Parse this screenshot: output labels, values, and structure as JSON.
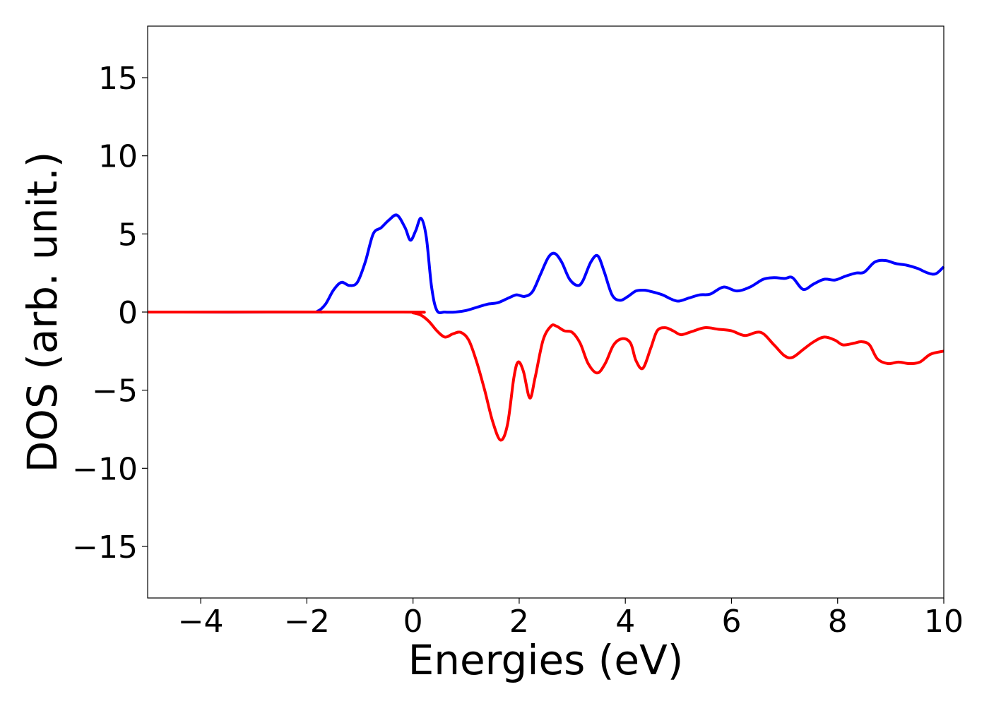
{
  "chart_data": {
    "type": "line",
    "title": "",
    "xlabel": "Energies (eV)",
    "ylabel": "DOS (arb. unit.)",
    "xlim": [
      -5,
      10
    ],
    "ylim": [
      -18.3,
      18.3
    ],
    "xticks": [
      -4,
      -2,
      0,
      2,
      4,
      6,
      8,
      10
    ],
    "yticks": [
      -15,
      -10,
      -5,
      0,
      5,
      10,
      15
    ],
    "xtick_labels": [
      "−4",
      "−2",
      "0",
      "2",
      "4",
      "6",
      "8",
      "10"
    ],
    "ytick_labels": [
      "−15",
      "−10",
      "−5",
      "0",
      "5",
      "10",
      "15"
    ],
    "grid": false,
    "series": [
      {
        "color": "#0000ff",
        "x": [
          -5,
          -2.0,
          -1.8,
          -1.65,
          -1.5,
          -1.35,
          -1.2,
          -1.05,
          -0.9,
          -0.75,
          -0.6,
          -0.45,
          -0.3,
          -0.15,
          -0.05,
          0.05,
          0.15,
          0.25,
          0.35,
          0.45,
          0.6,
          0.8,
          1.0,
          1.2,
          1.4,
          1.6,
          1.8,
          1.95,
          2.1,
          2.25,
          2.4,
          2.55,
          2.67,
          2.8,
          2.95,
          3.1,
          3.2,
          3.35,
          3.48,
          3.6,
          3.75,
          3.9,
          4.05,
          4.2,
          4.35,
          4.5,
          4.7,
          4.85,
          5.0,
          5.2,
          5.4,
          5.6,
          5.85,
          6.1,
          6.35,
          6.6,
          6.8,
          7.0,
          7.15,
          7.35,
          7.55,
          7.75,
          7.95,
          8.15,
          8.35,
          8.5,
          8.7,
          8.9,
          9.1,
          9.3,
          9.5,
          9.7,
          9.85,
          10
        ],
        "y": [
          0,
          0,
          0.05,
          0.5,
          1.4,
          1.9,
          1.7,
          1.9,
          3.2,
          5.0,
          5.4,
          5.9,
          6.2,
          5.4,
          4.6,
          5.2,
          6.0,
          4.8,
          1.6,
          0.1,
          0.0,
          0.0,
          0.1,
          0.3,
          0.5,
          0.6,
          0.9,
          1.1,
          1.0,
          1.3,
          2.4,
          3.5,
          3.75,
          3.2,
          2.1,
          1.7,
          2.0,
          3.2,
          3.6,
          2.6,
          1.1,
          0.75,
          1.0,
          1.35,
          1.4,
          1.3,
          1.1,
          0.85,
          0.7,
          0.9,
          1.1,
          1.15,
          1.6,
          1.35,
          1.6,
          2.1,
          2.2,
          2.15,
          2.2,
          1.45,
          1.8,
          2.1,
          2.05,
          2.3,
          2.5,
          2.55,
          3.2,
          3.3,
          3.1,
          3.0,
          2.8,
          2.5,
          2.45,
          2.9
        ]
      },
      {
        "color": "#ff0000",
        "x": [
          -5,
          -0.2,
          0.0,
          0.15,
          0.3,
          0.45,
          0.6,
          0.75,
          0.9,
          1.05,
          1.2,
          1.35,
          1.5,
          1.65,
          1.78,
          1.9,
          1.98,
          2.08,
          2.2,
          2.3,
          2.45,
          2.6,
          2.7,
          2.85,
          3.0,
          3.15,
          3.3,
          3.47,
          3.62,
          3.78,
          3.95,
          4.1,
          4.2,
          4.33,
          4.48,
          4.6,
          4.75,
          4.9,
          5.05,
          5.25,
          5.5,
          5.75,
          6.0,
          6.25,
          6.55,
          6.8,
          7.0,
          7.15,
          7.35,
          7.55,
          7.75,
          7.95,
          8.1,
          8.3,
          8.45,
          8.6,
          8.75,
          8.95,
          9.15,
          9.35,
          9.55,
          9.75,
          10
        ],
        "y": [
          0,
          0,
          -0.05,
          -0.2,
          -0.6,
          -1.2,
          -1.6,
          -1.4,
          -1.3,
          -1.8,
          -3.2,
          -5.0,
          -7.0,
          -8.2,
          -7.2,
          -4.2,
          -3.2,
          -3.8,
          -5.5,
          -4.2,
          -1.8,
          -0.9,
          -0.9,
          -1.2,
          -1.3,
          -2.0,
          -3.3,
          -3.9,
          -3.3,
          -2.1,
          -1.7,
          -2.0,
          -3.1,
          -3.6,
          -2.3,
          -1.2,
          -1.0,
          -1.2,
          -1.45,
          -1.25,
          -1.0,
          -1.1,
          -1.2,
          -1.5,
          -1.3,
          -2.1,
          -2.8,
          -2.9,
          -2.4,
          -1.9,
          -1.6,
          -1.8,
          -2.1,
          -2.0,
          -1.9,
          -2.1,
          -3.0,
          -3.3,
          -3.2,
          -3.3,
          -3.2,
          -2.7,
          -2.5
        ]
      }
    ]
  }
}
